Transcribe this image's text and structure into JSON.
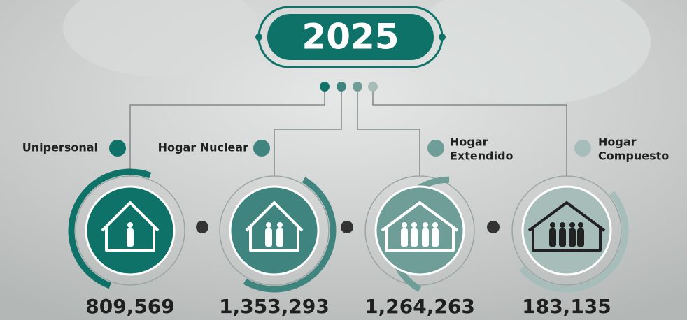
{
  "header": {
    "year": "2025"
  },
  "items": [
    {
      "label": [
        "Unipersonal"
      ],
      "value": "809,569",
      "color": "#0e7268"
    },
    {
      "label": [
        "Hogar Nuclear"
      ],
      "value": "1,353,293",
      "color": "#3f847f"
    },
    {
      "label": [
        "Hogar",
        "Extendido"
      ],
      "value": "1,264,263",
      "color": "#6f9e99"
    },
    {
      "label": [
        "Hogar",
        "Compuesto"
      ],
      "value": "183,135",
      "color": "#a6bdba"
    }
  ]
}
